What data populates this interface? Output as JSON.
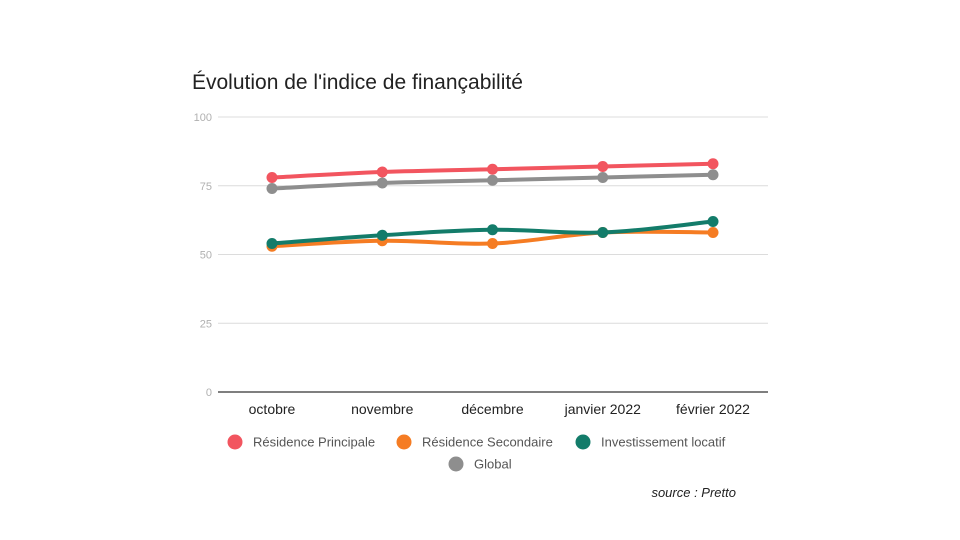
{
  "chart_data": {
    "type": "line",
    "title": "Évolution de l'indice de finançabilité",
    "xlabel": "",
    "ylabel": "",
    "categories": [
      "octobre",
      "novembre",
      "décembre",
      "janvier 2022",
      "février 2022"
    ],
    "ylim": [
      0,
      100
    ],
    "yticks": [
      0,
      25,
      50,
      75,
      100
    ],
    "grid": true,
    "legend_position": "bottom",
    "series": [
      {
        "name": "Résidence Principale",
        "color": "#f2555f",
        "values": [
          78,
          80,
          81,
          82,
          83
        ]
      },
      {
        "name": "Résidence Secondaire",
        "color": "#f57c23",
        "values": [
          53,
          55,
          54,
          58,
          58
        ]
      },
      {
        "name": "Investissement locatif",
        "color": "#137c6a",
        "values": [
          54,
          57,
          59,
          58,
          62
        ]
      },
      {
        "name": "Global",
        "color": "#8e8e8e",
        "values": [
          74,
          76,
          77,
          78,
          79
        ]
      }
    ]
  },
  "source_text": "source : Pretto"
}
